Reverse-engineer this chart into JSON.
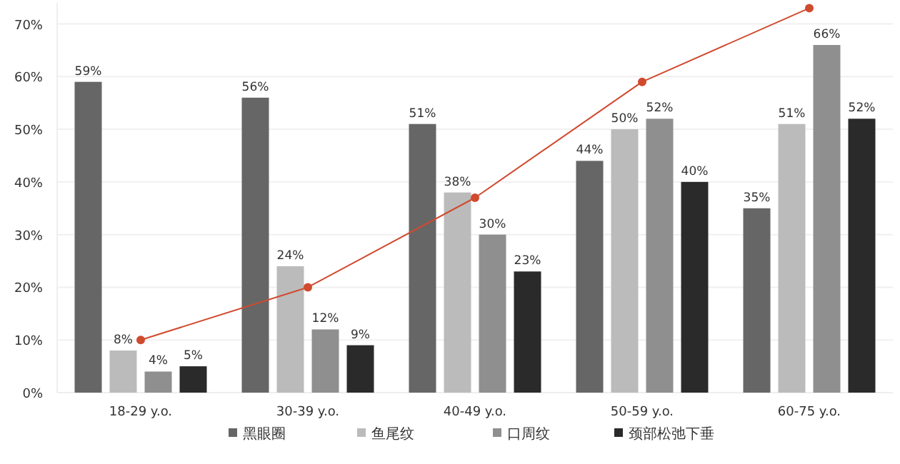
{
  "chart_data": {
    "type": "bar",
    "categories": [
      "18-29 y.o.",
      "30-39 y.o.",
      "40-49 y.o.",
      "50-59 y.o.",
      "60-75 y.o."
    ],
    "series": [
      {
        "name": "黑眼圈",
        "color": "#666666",
        "values": [
          59,
          56,
          51,
          44,
          35
        ],
        "value_labels": [
          "59%",
          "56%",
          "51%",
          "44%",
          "35%"
        ]
      },
      {
        "name": "鱼尾纹",
        "color": "#bbbbbb",
        "values": [
          8,
          24,
          38,
          50,
          51
        ],
        "value_labels": [
          "8%",
          "24%",
          "38%",
          "50%",
          "51%"
        ]
      },
      {
        "name": "口周纹",
        "color": "#8f8f8f",
        "values": [
          4,
          12,
          30,
          52,
          66
        ],
        "value_labels": [
          "4%",
          "12%",
          "30%",
          "52%",
          "66%"
        ]
      },
      {
        "name": "颈部松弛下垂",
        "color": "#2a2a2a",
        "values": [
          5,
          9,
          23,
          40,
          52
        ],
        "value_labels": [
          "5%",
          "9%",
          "23%",
          "40%",
          "52%"
        ]
      },
      {
        "type": "line",
        "color": "#d04a2e",
        "marker": "circle",
        "values": [
          10,
          20,
          37,
          59,
          73
        ]
      }
    ],
    "ylim": [
      0,
      74
    ],
    "yticks": [
      {
        "value": 0,
        "label": "0%"
      },
      {
        "value": 10,
        "label": "10%"
      },
      {
        "value": 20,
        "label": "20%"
      },
      {
        "value": 30,
        "label": "30%"
      },
      {
        "value": 40,
        "label": "40%"
      },
      {
        "value": 50,
        "label": "50%"
      },
      {
        "value": 60,
        "label": "60%"
      },
      {
        "value": 70,
        "label": "70%"
      }
    ],
    "grid": "y",
    "legend": "bottom"
  }
}
